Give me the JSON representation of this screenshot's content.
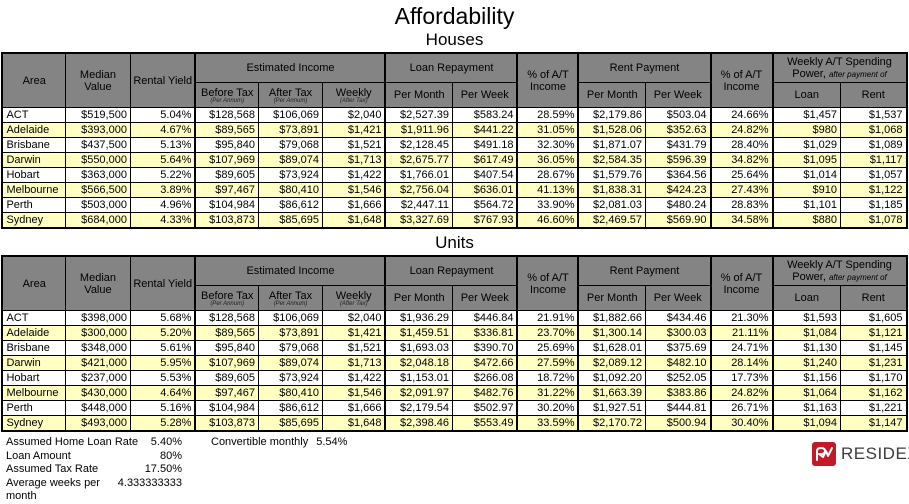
{
  "title": "Affordability",
  "header": {
    "area": "Area",
    "median_value": "Median Value",
    "rental_yield": "Rental Yield",
    "estimated_income": "Estimated Income",
    "before_tax": "Before Tax",
    "before_tax_note": "(Per Annum)",
    "after_tax": "After Tax",
    "after_tax_note": "(Per Annum)",
    "weekly": "Weekly",
    "weekly_note": "(After Tax)",
    "loan_repayment": "Loan Repayment",
    "per_month": "Per Month",
    "per_week": "Per Week",
    "pct_at_income": "% of A/T Income",
    "rent_payment": "Rent Payment",
    "spending_power": "Weekly A/T Spending Power,",
    "spending_power_note": "after payment of",
    "loan": "Loan",
    "rent": "Rent"
  },
  "tables": [
    {
      "title": "Houses",
      "rows": [
        [
          "ACT",
          "$519,500",
          "5.04%",
          "$128,568",
          "$106,069",
          "$2,040",
          "$2,527.39",
          "$583.24",
          "28.59%",
          "$2,179.86",
          "$503.04",
          "24.66%",
          "$1,457",
          "$1,537"
        ],
        [
          "Adelaide",
          "$393,000",
          "4.67%",
          "$89,565",
          "$73,891",
          "$1,421",
          "$1,911.96",
          "$441.22",
          "31.05%",
          "$1,528.06",
          "$352.63",
          "24.82%",
          "$980",
          "$1,068"
        ],
        [
          "Brisbane",
          "$437,500",
          "5.13%",
          "$95,840",
          "$79,068",
          "$1,521",
          "$2,128.45",
          "$491.18",
          "32.30%",
          "$1,871.07",
          "$431.79",
          "28.40%",
          "$1,029",
          "$1,089"
        ],
        [
          "Darwin",
          "$550,000",
          "5.64%",
          "$107,969",
          "$89,074",
          "$1,713",
          "$2,675.77",
          "$617.49",
          "36.05%",
          "$2,584.35",
          "$596.39",
          "34.82%",
          "$1,095",
          "$1,117"
        ],
        [
          "Hobart",
          "$363,000",
          "5.22%",
          "$89,605",
          "$73,924",
          "$1,422",
          "$1,766.01",
          "$407.54",
          "28.67%",
          "$1,579.76",
          "$364.56",
          "25.64%",
          "$1,014",
          "$1,057"
        ],
        [
          "Melbourne",
          "$566,500",
          "3.89%",
          "$97,467",
          "$80,410",
          "$1,546",
          "$2,756.04",
          "$636.01",
          "41.13%",
          "$1,838.31",
          "$424.23",
          "27.43%",
          "$910",
          "$1,122"
        ],
        [
          "Perth",
          "$503,000",
          "4.96%",
          "$104,984",
          "$86,612",
          "$1,666",
          "$2,447.11",
          "$564.72",
          "33.90%",
          "$2,081.03",
          "$480.24",
          "28.83%",
          "$1,101",
          "$1,185"
        ],
        [
          "Sydney",
          "$684,000",
          "4.33%",
          "$103,873",
          "$85,695",
          "$1,648",
          "$3,327.69",
          "$767.93",
          "46.60%",
          "$2,469.57",
          "$569.90",
          "34.58%",
          "$880",
          "$1,078"
        ]
      ]
    },
    {
      "title": "Units",
      "rows": [
        [
          "ACT",
          "$398,000",
          "5.68%",
          "$128,568",
          "$106,069",
          "$2,040",
          "$1,936.29",
          "$446.84",
          "21.91%",
          "$1,882.66",
          "$434.46",
          "21.30%",
          "$1,593",
          "$1,605"
        ],
        [
          "Adelaide",
          "$300,000",
          "5.20%",
          "$89,565",
          "$73,891",
          "$1,421",
          "$1,459.51",
          "$336.81",
          "23.70%",
          "$1,300.14",
          "$300.03",
          "21.11%",
          "$1,084",
          "$1,121"
        ],
        [
          "Brisbane",
          "$348,000",
          "5.61%",
          "$95,840",
          "$79,068",
          "$1,521",
          "$1,693.03",
          "$390.70",
          "25.69%",
          "$1,628.01",
          "$375.69",
          "24.71%",
          "$1,130",
          "$1,145"
        ],
        [
          "Darwin",
          "$421,000",
          "5.95%",
          "$107,969",
          "$89,074",
          "$1,713",
          "$2,048.18",
          "$472.66",
          "27.59%",
          "$2,089.12",
          "$482.10",
          "28.14%",
          "$1,240",
          "$1,231"
        ],
        [
          "Hobart",
          "$237,000",
          "5.53%",
          "$89,605",
          "$73,924",
          "$1,422",
          "$1,153.01",
          "$266.08",
          "18.72%",
          "$1,092.20",
          "$252.05",
          "17.73%",
          "$1,156",
          "$1,170"
        ],
        [
          "Melbourne",
          "$430,000",
          "4.64%",
          "$97,467",
          "$80,410",
          "$1,546",
          "$2,091.97",
          "$482.76",
          "31.22%",
          "$1,663.39",
          "$383.86",
          "24.82%",
          "$1,064",
          "$1,162"
        ],
        [
          "Perth",
          "$448,000",
          "5.16%",
          "$104,984",
          "$86,612",
          "$1,666",
          "$2,179.54",
          "$502.97",
          "30.20%",
          "$1,927.51",
          "$444.81",
          "26.71%",
          "$1,163",
          "$1,221"
        ],
        [
          "Sydney",
          "$493,000",
          "5.28%",
          "$103,873",
          "$85,695",
          "$1,648",
          "$2,398.46",
          "$553.49",
          "33.59%",
          "$2,170.72",
          "$500.94",
          "30.40%",
          "$1,094",
          "$1,147"
        ]
      ]
    }
  ],
  "footer": {
    "items": [
      {
        "label": "Assumed Home Loan Rate",
        "value": "5.40%"
      },
      {
        "label": "Loan Amount",
        "value": "80%"
      },
      {
        "label": "Assumed Tax Rate",
        "value": "17.50%"
      },
      {
        "label": "Average weeks per month",
        "value": "4.333333333"
      }
    ],
    "convertible_label": "Convertible monthly",
    "convertible_value": "5.54%"
  },
  "logo": {
    "text": "RESIDEX",
    "mark_color": "#c41a27"
  },
  "colors": {
    "header_bg": "#848484",
    "subheader_bg": "#c6c6c6",
    "row_alt_bg": "#ffffc2",
    "border": "#000000",
    "logo_red": "#c41a27"
  }
}
